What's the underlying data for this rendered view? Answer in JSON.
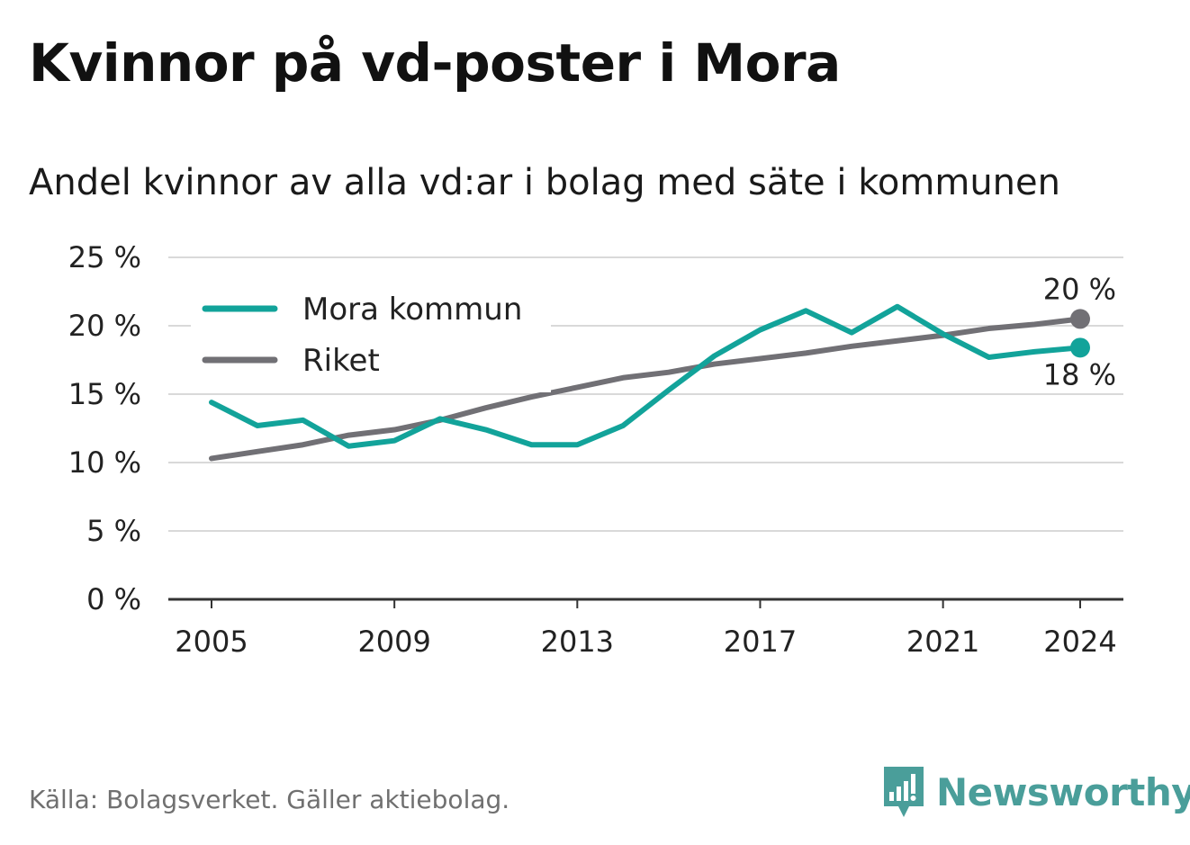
{
  "title": "Kvinnor på vd-poster i Mora",
  "subtitle": "Andel kvinnor av alla vd:ar i bolag med säte i kommunen",
  "source": "Källa: Bolagsverket. Gäller aktiebolag.",
  "brand": {
    "name": "Newsworthy",
    "icon": "newsworthy-logo-icon",
    "color": "#4a9e9a"
  },
  "chart_data": {
    "type": "line",
    "title": "Kvinnor på vd-poster i Mora",
    "subtitle": "Andel kvinnor av alla vd:ar i bolag med säte i kommunen",
    "x": [
      2005,
      2006,
      2007,
      2008,
      2009,
      2010,
      2011,
      2012,
      2013,
      2014,
      2015,
      2016,
      2017,
      2018,
      2019,
      2020,
      2021,
      2022,
      2023,
      2024
    ],
    "x_ticks": [
      2005,
      2009,
      2013,
      2017,
      2021,
      2024
    ],
    "x_tick_labels": [
      "2005",
      "2009",
      "2013",
      "2017",
      "2021",
      "2024"
    ],
    "y_ticks": [
      0,
      5,
      10,
      15,
      20,
      25
    ],
    "y_tick_labels": [
      "0 %",
      "5 %",
      "10 %",
      "15 %",
      "20 %",
      "25 %"
    ],
    "ylim": [
      0,
      25
    ],
    "xlim": [
      2005,
      2024
    ],
    "grid": true,
    "legend_position": "top-left",
    "series": [
      {
        "name": "Mora kommun",
        "color": "#12a39a",
        "values": [
          14.4,
          12.7,
          13.1,
          11.2,
          11.6,
          13.2,
          12.4,
          11.3,
          11.3,
          12.7,
          15.3,
          17.8,
          19.7,
          21.1,
          19.5,
          21.4,
          19.4,
          17.7,
          18.1,
          18.4
        ],
        "end_label": "18 %"
      },
      {
        "name": "Riket",
        "color": "#717075",
        "values": [
          10.3,
          10.8,
          11.3,
          12.0,
          12.4,
          13.1,
          14.0,
          14.8,
          15.5,
          16.2,
          16.6,
          17.2,
          17.6,
          18.0,
          18.5,
          18.9,
          19.3,
          19.8,
          20.1,
          20.5
        ],
        "end_label": "20 %"
      }
    ]
  }
}
